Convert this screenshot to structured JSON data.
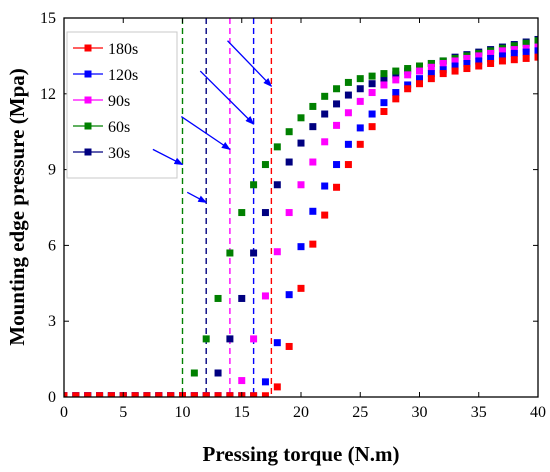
{
  "chart_data": {
    "type": "scatter",
    "xlabel": "Pressing torque (N.m)",
    "ylabel": "Mounting edge pressure (Mpa)",
    "xlim": [
      0,
      40
    ],
    "ylim": [
      0,
      15
    ],
    "xticks": [
      0,
      5,
      10,
      15,
      20,
      25,
      30,
      35,
      40
    ],
    "yticks": [
      0,
      3,
      6,
      9,
      12,
      15
    ],
    "grid": false,
    "legend_position": "top-left",
    "series": [
      {
        "name": "180s",
        "color": "#ff0000",
        "x": [
          0,
          1,
          2,
          3,
          4,
          5,
          6,
          7,
          8,
          9,
          10,
          11,
          12,
          13,
          14,
          15,
          16,
          17,
          18,
          19,
          20,
          21,
          22,
          23,
          24,
          25,
          26,
          27,
          28,
          29,
          30,
          31,
          32,
          33,
          34,
          35,
          36,
          37,
          38,
          39,
          40
        ],
        "y": [
          0.05,
          0.05,
          0.05,
          0.05,
          0.05,
          0.05,
          0.05,
          0.05,
          0.05,
          0.05,
          0.05,
          0.05,
          0.05,
          0.05,
          0.05,
          0.05,
          0.05,
          0.05,
          0.4,
          2.0,
          4.3,
          6.05,
          7.2,
          8.3,
          9.2,
          10.0,
          10.7,
          11.3,
          11.8,
          12.2,
          12.4,
          12.6,
          12.8,
          12.9,
          13.0,
          13.1,
          13.2,
          13.3,
          13.35,
          13.4,
          13.45
        ]
      },
      {
        "name": "120s",
        "color": "#0000ff",
        "x": [
          0,
          1,
          2,
          3,
          4,
          5,
          6,
          7,
          8,
          9,
          10,
          11,
          12,
          13,
          14,
          15,
          16,
          17,
          18,
          19,
          20,
          21,
          22,
          23,
          24,
          25,
          26,
          27,
          28,
          29,
          30,
          31,
          32,
          33,
          34,
          35,
          36,
          37,
          38,
          39,
          40
        ],
        "y": [
          0.05,
          0.05,
          0.05,
          0.05,
          0.05,
          0.05,
          0.05,
          0.05,
          0.05,
          0.05,
          0.05,
          0.05,
          0.05,
          0.05,
          0.05,
          0.05,
          0.05,
          0.6,
          2.15,
          4.05,
          5.95,
          7.35,
          8.35,
          9.2,
          10.0,
          10.65,
          11.2,
          11.65,
          12.05,
          12.35,
          12.6,
          12.8,
          12.95,
          13.1,
          13.2,
          13.3,
          13.4,
          13.5,
          13.6,
          13.65,
          13.7
        ]
      },
      {
        "name": "90s",
        "color": "#ff00ff",
        "x": [
          0,
          1,
          2,
          3,
          4,
          5,
          6,
          7,
          8,
          9,
          10,
          11,
          12,
          13,
          14,
          15,
          16,
          17,
          18,
          19,
          20,
          21,
          22,
          23,
          24,
          25,
          26,
          27,
          28,
          29,
          30,
          31,
          32,
          33,
          34,
          35,
          36,
          37,
          38,
          39,
          40
        ],
        "y": [
          0.05,
          0.05,
          0.05,
          0.05,
          0.05,
          0.05,
          0.05,
          0.05,
          0.05,
          0.05,
          0.05,
          0.05,
          0.05,
          0.05,
          0.05,
          0.65,
          2.3,
          4.0,
          5.75,
          7.3,
          8.4,
          9.3,
          10.1,
          10.75,
          11.25,
          11.7,
          12.05,
          12.35,
          12.55,
          12.75,
          12.9,
          13.05,
          13.2,
          13.3,
          13.4,
          13.5,
          13.6,
          13.7,
          13.75,
          13.8,
          13.85
        ]
      },
      {
        "name": "60s",
        "color": "#008000",
        "x": [
          0,
          1,
          2,
          3,
          4,
          5,
          6,
          7,
          8,
          9,
          10,
          11,
          12,
          13,
          14,
          15,
          16,
          17,
          18,
          19,
          20,
          21,
          22,
          23,
          24,
          25,
          26,
          27,
          28,
          29,
          30,
          31,
          32,
          33,
          34,
          35,
          36,
          37,
          38,
          39,
          40
        ],
        "y": [
          0.05,
          0.05,
          0.05,
          0.05,
          0.05,
          0.05,
          0.05,
          0.05,
          0.05,
          0.05,
          0.05,
          0.95,
          2.3,
          3.9,
          5.7,
          7.3,
          8.4,
          9.2,
          9.9,
          10.5,
          11.05,
          11.5,
          11.9,
          12.2,
          12.45,
          12.6,
          12.7,
          12.8,
          12.9,
          13.0,
          13.1,
          13.2,
          13.3,
          13.4,
          13.5,
          13.6,
          13.7,
          13.8,
          13.9,
          14.0,
          14.1
        ]
      },
      {
        "name": "30s",
        "color": "#000080",
        "x": [
          0,
          1,
          2,
          3,
          4,
          5,
          6,
          7,
          8,
          9,
          10,
          11,
          12,
          13,
          14,
          15,
          16,
          17,
          18,
          19,
          20,
          21,
          22,
          23,
          24,
          25,
          26,
          27,
          28,
          29,
          30,
          31,
          32,
          33,
          34,
          35,
          36,
          37,
          38,
          39,
          40
        ],
        "y": [
          0.05,
          0.05,
          0.05,
          0.05,
          0.05,
          0.05,
          0.05,
          0.05,
          0.05,
          0.05,
          0.05,
          0.05,
          0.05,
          0.95,
          2.3,
          3.9,
          5.7,
          7.3,
          8.4,
          9.3,
          10.05,
          10.7,
          11.2,
          11.6,
          11.95,
          12.2,
          12.4,
          12.6,
          12.75,
          12.9,
          13.05,
          13.2,
          13.3,
          13.45,
          13.55,
          13.65,
          13.75,
          13.85,
          13.95,
          14.05,
          14.15
        ]
      }
    ],
    "vlines": [
      {
        "x": 10,
        "color": "#008000"
      },
      {
        "x": 12,
        "color": "#000080"
      },
      {
        "x": 14,
        "color": "#ff00ff"
      },
      {
        "x": 16,
        "color": "#0000ff"
      },
      {
        "x": 17.5,
        "color": "#ff0000"
      }
    ],
    "arrows": [
      {
        "from": [
          13.8,
          14.1
        ],
        "to": [
          17.5,
          12.3
        ]
      },
      {
        "from": [
          11.5,
          12.9
        ],
        "to": [
          16.0,
          10.8
        ]
      },
      {
        "from": [
          9.9,
          11.1
        ],
        "to": [
          14.0,
          9.8
        ]
      },
      {
        "from": [
          7.5,
          9.8
        ],
        "to": [
          10.0,
          9.2
        ]
      },
      {
        "from": [
          10.4,
          8.1
        ],
        "to": [
          12.0,
          7.7
        ]
      }
    ]
  }
}
